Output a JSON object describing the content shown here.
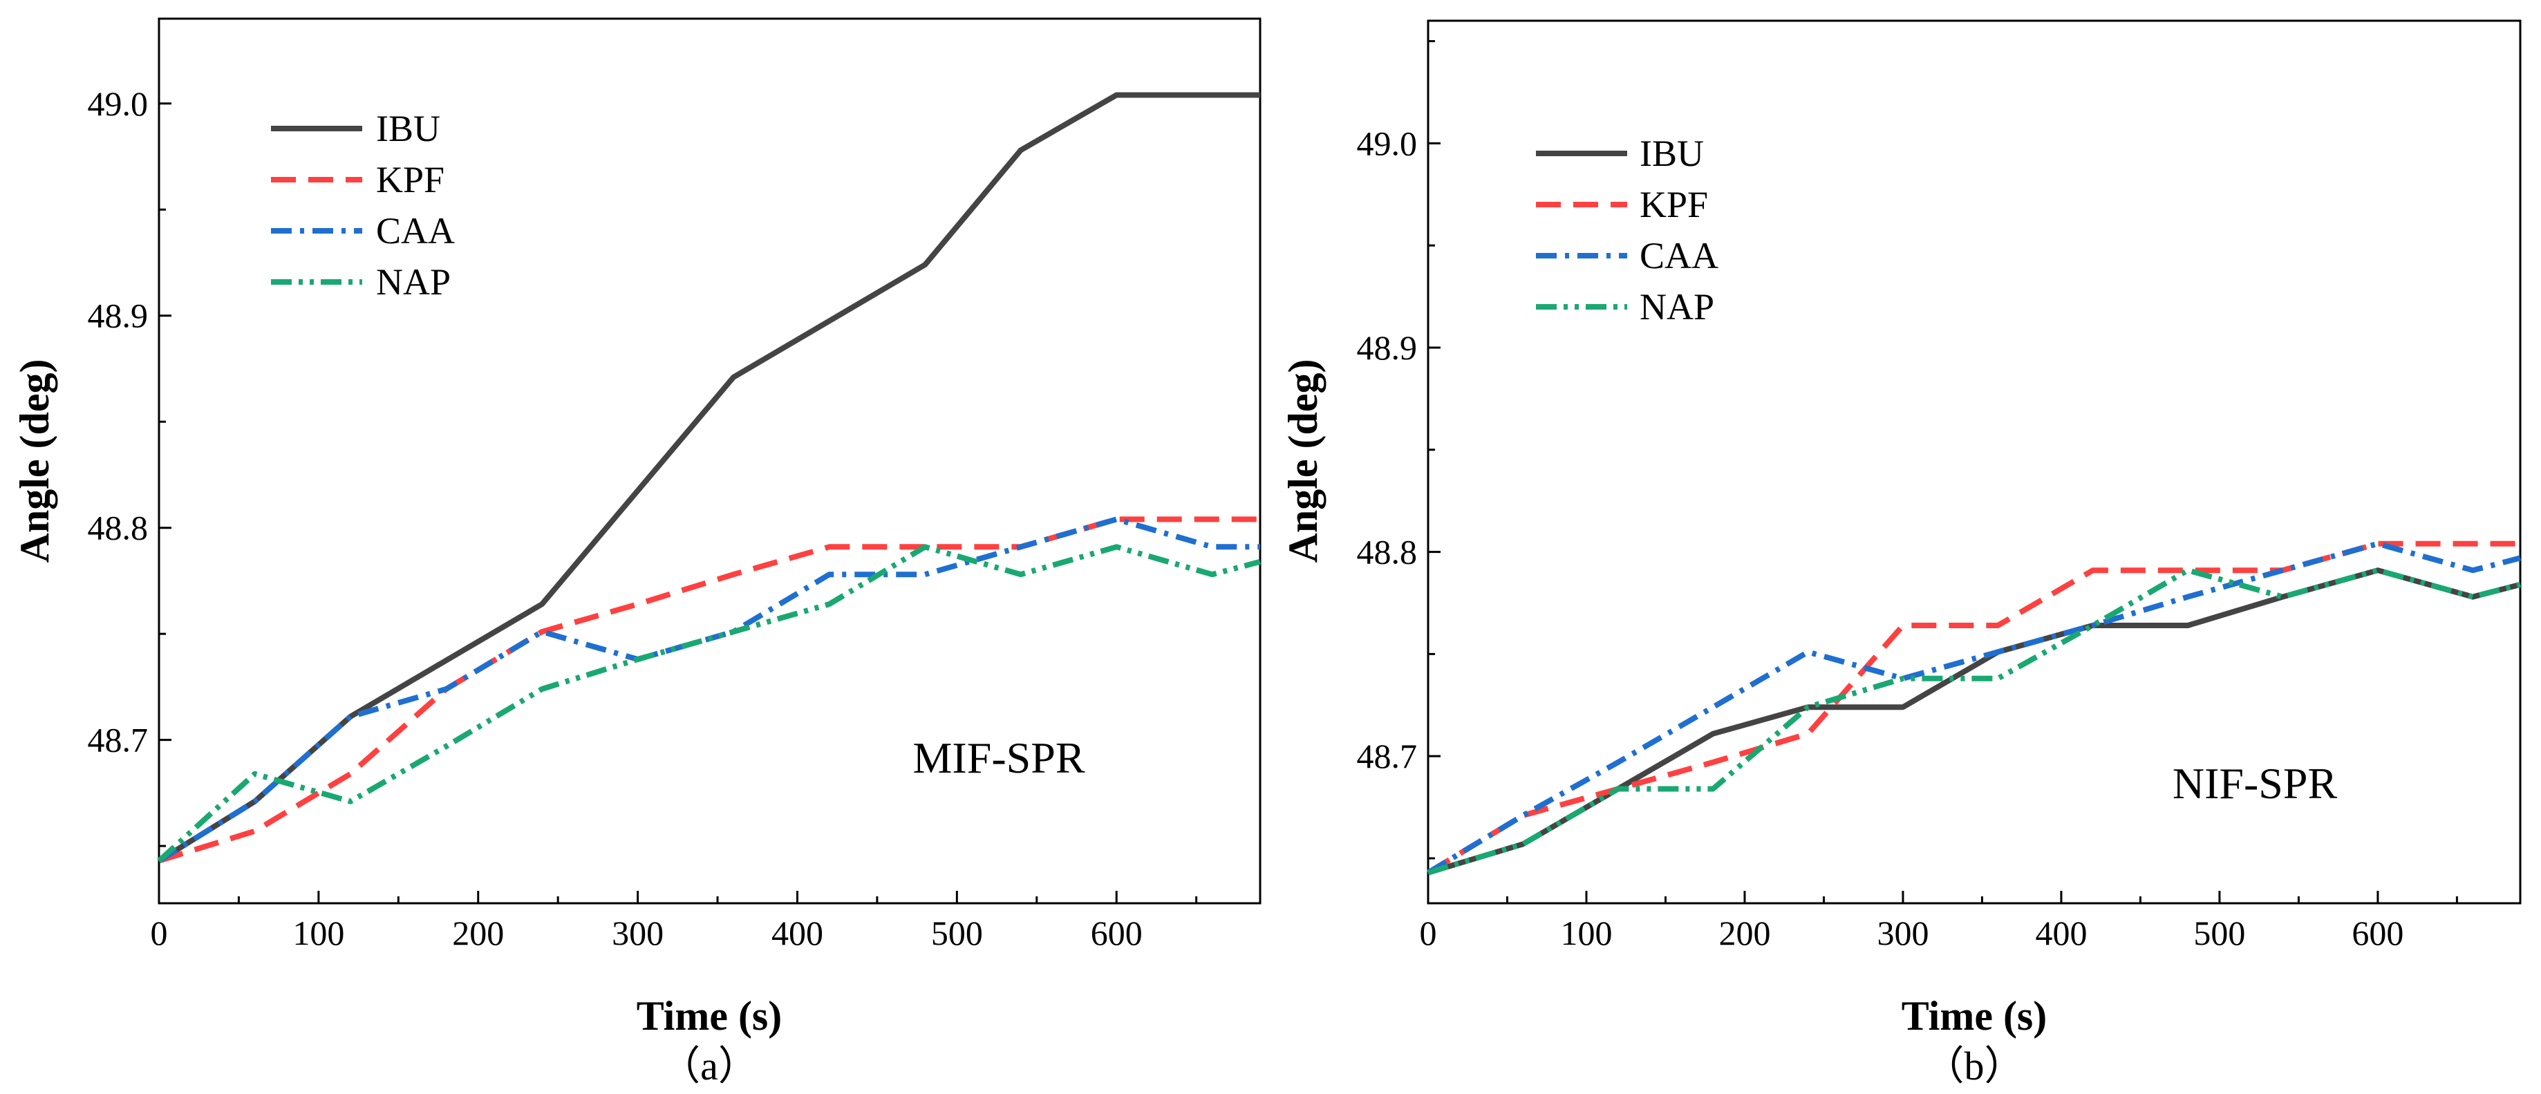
{
  "chart_data": [
    {
      "type": "line",
      "panel": "a",
      "caption": "（a）",
      "annotation": "MIF-SPR",
      "xlabel": "Time (s)",
      "ylabel": "Angle (deg)",
      "xlim": [
        0,
        690
      ],
      "ylim": [
        48.623,
        49.04
      ],
      "xticks": [
        0,
        100,
        200,
        300,
        400,
        500,
        600
      ],
      "yticks": [
        48.7,
        48.8,
        48.9,
        49.0
      ],
      "ytick_labels": [
        "48.7",
        "48.8",
        "48.9",
        "49.0"
      ],
      "legend_position": "top-left",
      "grid": false,
      "series": [
        {
          "name": "IBU",
          "color": "#444444",
          "dash": "solid",
          "x": [
            0,
            60,
            120,
            240,
            360,
            480,
            540,
            600,
            690
          ],
          "y": [
            48.643,
            48.671,
            48.711,
            48.764,
            48.871,
            48.924,
            48.978,
            49.004,
            49.004
          ]
        },
        {
          "name": "KPF",
          "color": "#ff4040",
          "dash": "dash",
          "x": [
            0,
            60,
            120,
            180,
            240,
            300,
            360,
            420,
            480,
            540,
            600,
            690
          ],
          "y": [
            48.643,
            48.657,
            48.684,
            48.724,
            48.751,
            48.764,
            48.778,
            48.791,
            48.791,
            48.791,
            48.804,
            48.804
          ]
        },
        {
          "name": "CAA",
          "color": "#1f6fd0",
          "dash": "dashdot",
          "x": [
            0,
            60,
            120,
            180,
            240,
            300,
            360,
            420,
            480,
            540,
            600,
            660,
            690
          ],
          "y": [
            48.643,
            48.671,
            48.711,
            48.724,
            48.751,
            48.738,
            48.751,
            48.778,
            48.778,
            48.791,
            48.804,
            48.791,
            48.791
          ]
        },
        {
          "name": "NAP",
          "color": "#1aa872",
          "dash": "dashdotdot",
          "x": [
            0,
            60,
            120,
            180,
            240,
            300,
            360,
            420,
            480,
            540,
            600,
            660,
            690
          ],
          "y": [
            48.643,
            48.684,
            48.671,
            48.697,
            48.724,
            48.738,
            48.751,
            48.764,
            48.791,
            48.778,
            48.791,
            48.778,
            48.784
          ]
        }
      ]
    },
    {
      "type": "line",
      "panel": "b",
      "caption": "（b）",
      "annotation": "NIF-SPR",
      "xlabel": "Time (s)",
      "ylabel": "Angle (deg)",
      "xlim": [
        0,
        690
      ],
      "ylim": [
        48.628,
        49.06
      ],
      "xticks": [
        0,
        100,
        200,
        300,
        400,
        500,
        600
      ],
      "yticks": [
        48.7,
        48.8,
        48.9,
        49.0
      ],
      "ytick_labels": [
        "48.7",
        "48.8",
        "48.9",
        "49.0"
      ],
      "legend_position": "top-left",
      "grid": false,
      "series": [
        {
          "name": "IBU",
          "color": "#444444",
          "dash": "solid",
          "x": [
            0,
            60,
            120,
            180,
            240,
            300,
            360,
            420,
            480,
            540,
            600,
            660,
            690
          ],
          "y": [
            48.643,
            48.657,
            48.684,
            48.711,
            48.724,
            48.724,
            48.751,
            48.764,
            48.764,
            48.778,
            48.791,
            48.778,
            48.784
          ]
        },
        {
          "name": "KPF",
          "color": "#ff4040",
          "dash": "dash",
          "x": [
            0,
            60,
            120,
            180,
            240,
            300,
            360,
            420,
            480,
            540,
            600,
            690
          ],
          "y": [
            48.643,
            48.671,
            48.684,
            48.697,
            48.711,
            48.764,
            48.764,
            48.791,
            48.791,
            48.791,
            48.804,
            48.804
          ]
        },
        {
          "name": "CAA",
          "color": "#1f6fd0",
          "dash": "dashdot",
          "x": [
            0,
            60,
            120,
            180,
            240,
            300,
            360,
            420,
            480,
            540,
            600,
            660,
            690
          ],
          "y": [
            48.643,
            48.671,
            48.697,
            48.724,
            48.751,
            48.738,
            48.751,
            48.764,
            48.778,
            48.791,
            48.804,
            48.791,
            48.797
          ]
        },
        {
          "name": "NAP",
          "color": "#1aa872",
          "dash": "dashdotdot",
          "x": [
            0,
            60,
            120,
            180,
            240,
            300,
            360,
            420,
            480,
            540,
            600,
            660,
            690
          ],
          "y": [
            48.643,
            48.657,
            48.684,
            48.684,
            48.724,
            48.738,
            48.738,
            48.764,
            48.791,
            48.778,
            48.791,
            48.778,
            48.784
          ]
        }
      ]
    }
  ]
}
